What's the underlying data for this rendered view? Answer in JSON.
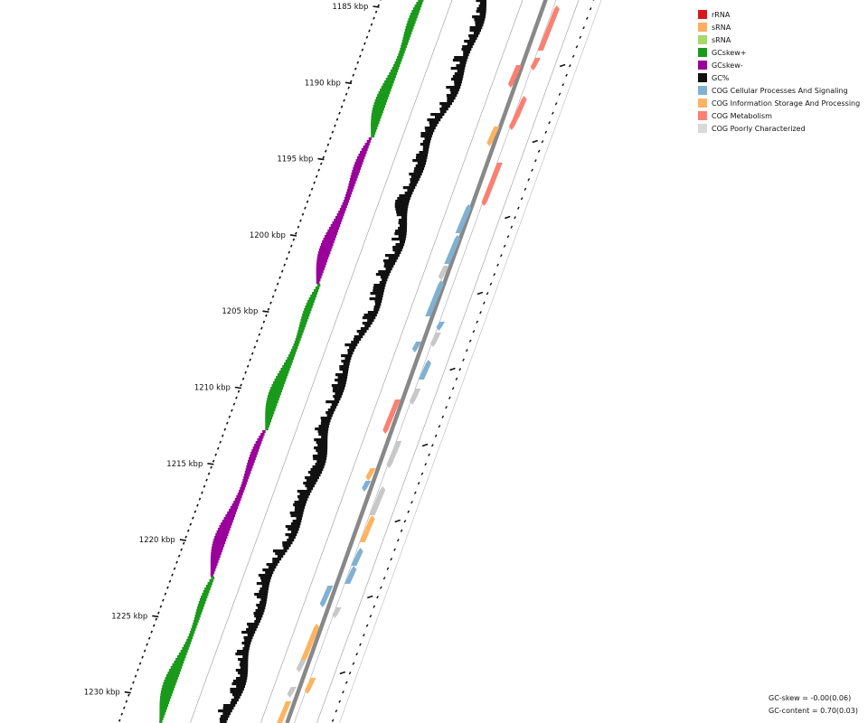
{
  "ruler": {
    "ticks": [
      {
        "kbp": 1185,
        "label": "1185 kbp"
      },
      {
        "kbp": 1190,
        "label": "1190 kbp"
      },
      {
        "kbp": 1195,
        "label": "1195 kbp"
      },
      {
        "kbp": 1200,
        "label": "1200 kbp"
      },
      {
        "kbp": 1205,
        "label": "1205 kbp"
      },
      {
        "kbp": 1210,
        "label": "1210 kbp"
      },
      {
        "kbp": 1215,
        "label": "1215 kbp"
      },
      {
        "kbp": 1220,
        "label": "1220 kbp"
      },
      {
        "kbp": 1225,
        "label": "1225 kbp"
      },
      {
        "kbp": 1230,
        "label": "1230 kbp"
      }
    ]
  },
  "legend": [
    {
      "label": "rRNA",
      "color": "#d7191c"
    },
    {
      "label": "sRNA",
      "color": "#fdae61"
    },
    {
      "label": "sRNA",
      "color": "#a6d96a"
    },
    {
      "label": "GCskew+",
      "color": "#1a9a1a"
    },
    {
      "label": "GCskew-",
      "color": "#9a009a"
    },
    {
      "label": "GC%",
      "color": "#111111"
    },
    {
      "label": "COG Cellular Processes And Signaling",
      "color": "#80b1d3"
    },
    {
      "label": "COG Information Storage And Processing",
      "color": "#fdb462"
    },
    {
      "label": "COG Metabolism",
      "color": "#fb8072"
    },
    {
      "label": "COG Poorly Characterized",
      "color": "#d9d9d9"
    }
  ],
  "stats": {
    "gc_skew": "GC-skew = -0.00(0.06)",
    "gc_content": "GC-content = 0.70(0.03)"
  }
}
